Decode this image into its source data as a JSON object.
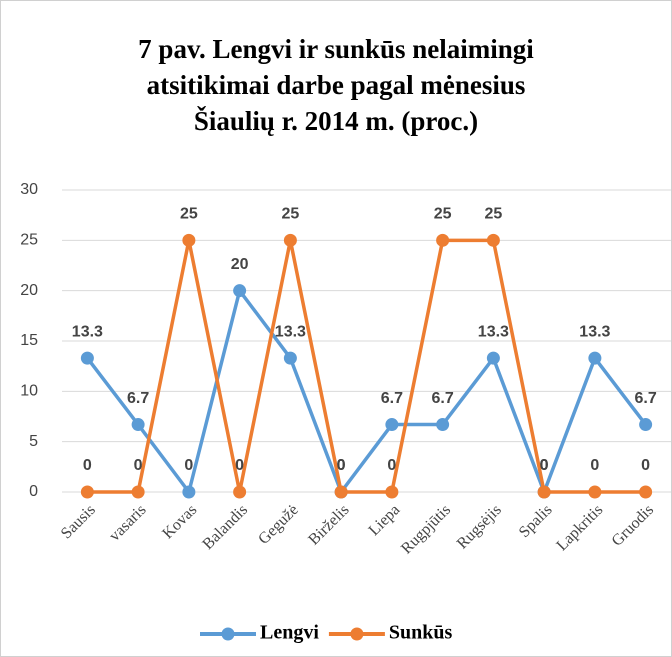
{
  "chart_data": {
    "type": "line",
    "title": [
      "7 pav. Lengvi ir sunkūs nelaimingi",
      "atsitikimai darbe pagal mėnesius",
      "Šiaulių r. 2014 m. (proc.)"
    ],
    "categories": [
      "Sausis",
      "vasaris",
      "Kovas",
      "Balandis",
      "Gegužė",
      "Birželis",
      "Liepa",
      "Rugpjūtis",
      "Rugsėjis",
      "Spalis",
      "Lapkritis",
      "Gruodis"
    ],
    "series": [
      {
        "name": "Lengvi",
        "color": "#5b9bd5",
        "values": [
          13.3,
          6.7,
          0,
          20,
          13.3,
          0,
          6.7,
          6.7,
          13.3,
          0,
          13.3,
          6.7
        ]
      },
      {
        "name": "Sunkūs",
        "color": "#ed7d31",
        "values": [
          0,
          0,
          25,
          0,
          25,
          0,
          0,
          25,
          25,
          0,
          0,
          0
        ]
      }
    ],
    "ylim": [
      0,
      30
    ],
    "yticks": [
      0,
      5,
      10,
      15,
      20,
      25,
      30
    ],
    "grid": true,
    "legend": "bottom"
  }
}
